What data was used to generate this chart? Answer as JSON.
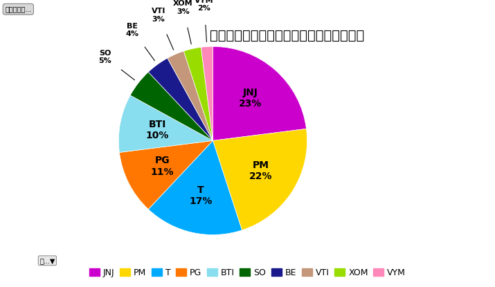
{
  "title": "米国株ポートフォリオ（時価総額ベース）",
  "labels": [
    "JNJ",
    "PM",
    "T",
    "PG",
    "BTI",
    "SO",
    "BE",
    "VTI",
    "XOM",
    "VYM"
  ],
  "values": [
    23,
    22,
    17,
    11,
    10,
    5,
    4,
    3,
    3,
    2
  ],
  "colors": [
    "#CC00CC",
    "#FFD700",
    "#00AAFF",
    "#FF7700",
    "#88DDEE",
    "#006400",
    "#1A1A8C",
    "#C4977A",
    "#99DD00",
    "#FF88BB"
  ],
  "startangle": 90,
  "title_fontsize": 14,
  "label_fontsize": 9,
  "legend_fontsize": 9,
  "bg_color": "#FFFFFF",
  "inside_threshold": 8,
  "outside_labels": [
    "SO",
    "BE",
    "VTI",
    "XOM",
    "VYM"
  ],
  "top_left_label": "合計／保有..."
}
